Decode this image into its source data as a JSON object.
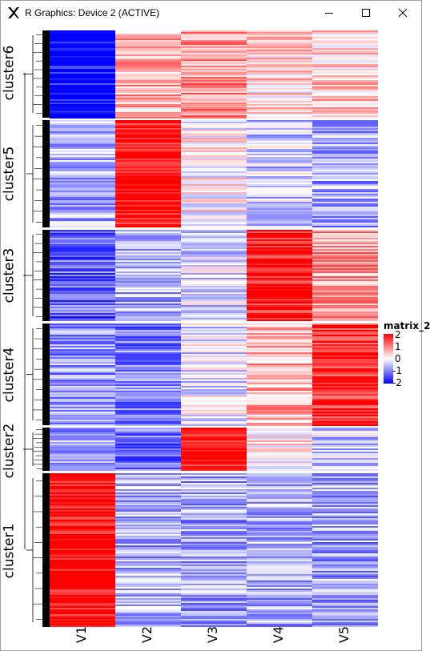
{
  "window": {
    "title": "R Graphics: Device 2 (ACTIVE)",
    "app_icon": "x11-icon",
    "controls": [
      "minimize-icon",
      "maximize-icon",
      "close-icon"
    ]
  },
  "heatmap": {
    "clusters": [
      "cluster6",
      "cluster5",
      "cluster3",
      "cluster4",
      "cluster2",
      "cluster1"
    ],
    "columns": [
      "V1",
      "V2",
      "V3",
      "V4",
      "V5"
    ],
    "legend": {
      "title": "matrix_2",
      "ticks": [
        "2",
        "1",
        "0",
        "-1",
        "-2"
      ]
    },
    "colors": {
      "high": "#ff0000",
      "mid": "#ffffff",
      "low": "#0000ff"
    }
  }
}
